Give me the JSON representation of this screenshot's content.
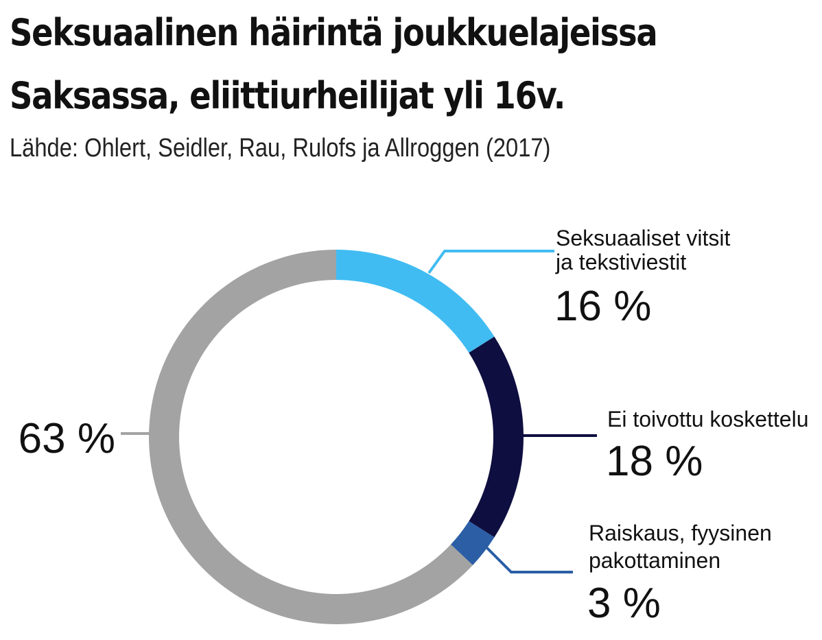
{
  "header": {
    "title_line1": "Seksuaalinen häirintä joukkuelajeissa",
    "title_line2": "Saksassa, eliittiurheilijat yli 16v.",
    "source": "Lähde: Ohlert, Seidler, Rau, Rulofs ja Allroggen (2017)"
  },
  "chart_data": {
    "type": "pie",
    "style": "donut",
    "title": "Seksuaalinen häirintä joukkuelajeissa Saksassa, eliittiurheilijat yli 16v.",
    "subtitle": "Lähde: Ohlert, Seidler, Rau, Rulofs ja Allroggen (2017)",
    "start_angle_deg": 0,
    "direction": "clockwise",
    "slices": [
      {
        "label_lines": [
          "Seksuaaliset vitsit",
          "ja tekstiviestit"
        ],
        "value": 16,
        "value_label": "16 %",
        "color": "#41bcf2"
      },
      {
        "label_lines": [
          "Ei toivottu koskettelu"
        ],
        "value": 18,
        "value_label": "18 %",
        "color": "#0f0e40"
      },
      {
        "label_lines": [
          "Raiskaus, fyysinen",
          "pakottaminen"
        ],
        "value": 3,
        "value_label": "3 %",
        "color": "#2b5ea5"
      },
      {
        "label_lines": [],
        "value": 63,
        "value_label": "63 %",
        "color": "#a3a3a3"
      }
    ]
  }
}
